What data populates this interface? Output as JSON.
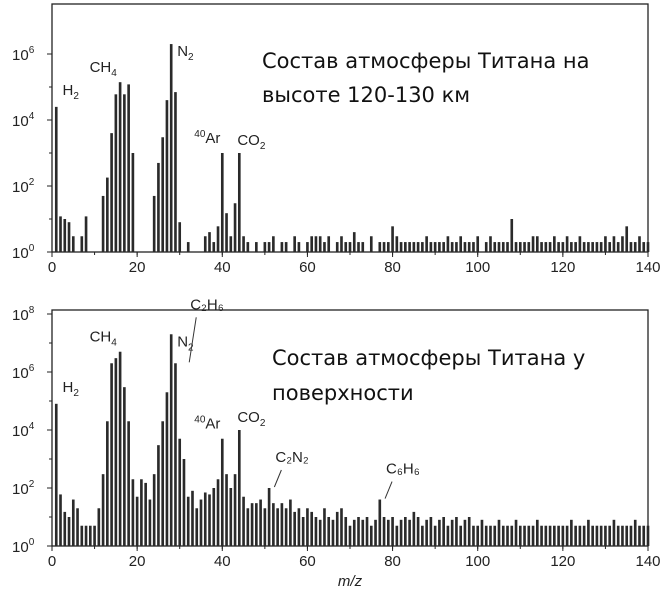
{
  "chart_data": [
    {
      "type": "bar",
      "title": "Состав атмосферы Титана на высоте 120-130 км",
      "title_lines": [
        "Состав атмосферы Титана на",
        "высоте 120-130 км"
      ],
      "xlabel": "",
      "ylabel": "",
      "xlim": [
        0,
        140
      ],
      "ylim": [
        1,
        3000000
      ],
      "yscale": "log",
      "x_ticks": [
        "0",
        "20",
        "40",
        "60",
        "80",
        "100",
        "120",
        "140"
      ],
      "y_ticks": [
        {
          "base": "10",
          "exp": "0"
        },
        {
          "base": "10",
          "exp": "2"
        },
        {
          "base": "10",
          "exp": "4"
        },
        {
          "base": "10",
          "exp": "6"
        }
      ],
      "x": [
        1,
        2,
        3,
        4,
        5,
        7,
        8,
        12,
        13,
        14,
        15,
        16,
        17,
        18,
        19,
        24,
        25,
        26,
        27,
        28,
        29,
        30,
        32,
        36,
        37,
        38,
        39,
        40,
        41,
        42,
        43,
        44,
        45,
        46,
        48,
        50,
        51,
        52,
        54,
        55,
        57,
        58,
        60,
        61,
        62,
        63,
        64,
        65,
        67,
        68,
        69,
        70,
        71,
        72,
        73,
        75,
        77,
        78,
        79,
        80,
        81,
        82,
        83,
        84,
        85,
        86,
        87,
        88,
        89,
        90,
        91,
        92,
        93,
        94,
        95,
        96,
        97,
        98,
        99,
        100,
        102,
        103,
        104,
        105,
        106,
        107,
        108,
        109,
        110,
        111,
        112,
        113,
        114,
        115,
        116,
        117,
        118,
        119,
        120,
        121,
        122,
        123,
        124,
        125,
        126,
        127,
        128,
        129,
        130,
        131,
        132,
        133,
        134,
        135,
        136,
        137,
        138,
        139,
        140
      ],
      "values": [
        25000,
        12,
        10,
        8,
        3,
        3,
        12,
        50,
        180,
        4000,
        60000,
        140000,
        60000,
        120000,
        1000,
        50,
        500,
        3000,
        40000,
        2000000,
        70000,
        8,
        2,
        3,
        4,
        2,
        6,
        1000,
        15,
        3,
        30,
        1000,
        3,
        2,
        2,
        2,
        2,
        3,
        2,
        2,
        3,
        2,
        2,
        3,
        3,
        3,
        2,
        3,
        2,
        3,
        2,
        2,
        4,
        2,
        2,
        3,
        2,
        2,
        2,
        6,
        3,
        2,
        2,
        2,
        2,
        2,
        2,
        3,
        2,
        2,
        2,
        2,
        3,
        2,
        2,
        3,
        2,
        2,
        2,
        3,
        2,
        3,
        2,
        2,
        2,
        2,
        10,
        2,
        2,
        2,
        2,
        3,
        3,
        2,
        2,
        2,
        3,
        2,
        2,
        3,
        2,
        2,
        3,
        2,
        2,
        2,
        2,
        2,
        3,
        2,
        3,
        2,
        3,
        6,
        2,
        2,
        3,
        2,
        2
      ],
      "annotations": [
        {
          "x": 2,
          "y": 25000,
          "label": "H",
          "sub": "2",
          "sup": ""
        },
        {
          "x": 14,
          "y": 140000,
          "label": "CH",
          "sub": "4",
          "sup": ""
        },
        {
          "x": 28,
          "y": 2000000,
          "label": "N",
          "sub": "2",
          "sup": ""
        },
        {
          "x": 40,
          "y": 1000,
          "label": "Ar",
          "sub": "",
          "sup": "40"
        },
        {
          "x": 44,
          "y": 1000,
          "label": "CO",
          "sub": "2",
          "sup": ""
        }
      ]
    },
    {
      "type": "bar",
      "title": "Состав атмосферы Титана у поверхности",
      "title_lines": [
        "Состав атмосферы Титана у",
        "поверхности"
      ],
      "xlabel": "m/z",
      "ylabel": "",
      "xlim": [
        0,
        140
      ],
      "ylim": [
        1,
        100000000
      ],
      "yscale": "log",
      "x_ticks": [
        "0",
        "20",
        "40",
        "60",
        "80",
        "100",
        "120",
        "140"
      ],
      "y_ticks": [
        {
          "base": "10",
          "exp": "0"
        },
        {
          "base": "10",
          "exp": "2"
        },
        {
          "base": "10",
          "exp": "4"
        },
        {
          "base": "10",
          "exp": "6"
        },
        {
          "base": "10",
          "exp": "8"
        }
      ],
      "x": [
        1,
        2,
        3,
        4,
        5,
        6,
        7,
        8,
        9,
        10,
        11,
        12,
        13,
        14,
        15,
        16,
        17,
        18,
        19,
        20,
        21,
        22,
        23,
        24,
        25,
        26,
        27,
        28,
        29,
        30,
        31,
        32,
        33,
        34,
        35,
        36,
        37,
        38,
        39,
        40,
        41,
        42,
        43,
        44,
        45,
        46,
        47,
        48,
        49,
        50,
        51,
        52,
        53,
        54,
        55,
        56,
        57,
        58,
        59,
        60,
        61,
        62,
        63,
        64,
        65,
        66,
        67,
        68,
        69,
        70,
        71,
        72,
        73,
        74,
        75,
        76,
        77,
        78,
        79,
        80,
        81,
        82,
        83,
        84,
        85,
        86,
        87,
        88,
        89,
        90,
        91,
        92,
        93,
        94,
        95,
        96,
        97,
        98,
        99,
        100,
        101,
        102,
        103,
        104,
        105,
        106,
        107,
        108,
        109,
        110,
        111,
        112,
        113,
        114,
        115,
        116,
        117,
        118,
        119,
        120,
        121,
        122,
        123,
        124,
        125,
        126,
        127,
        128,
        129,
        130,
        131,
        132,
        133,
        134,
        135,
        136,
        137,
        138,
        139,
        140
      ],
      "values": [
        80000,
        60,
        15,
        10,
        40,
        20,
        5,
        5,
        5,
        5,
        20,
        300,
        20000,
        2000000,
        3000000,
        5000000,
        300000,
        20000,
        200,
        50,
        200,
        150,
        40,
        300,
        3000,
        20000,
        200000,
        20000000,
        2000000,
        5000,
        1000,
        50,
        80,
        20,
        40,
        70,
        60,
        100,
        200,
        5000,
        300,
        100,
        300,
        10000,
        50,
        20,
        30,
        30,
        40,
        20,
        100,
        30,
        20,
        30,
        20,
        40,
        15,
        20,
        10,
        20,
        15,
        10,
        8,
        20,
        10,
        8,
        15,
        20,
        10,
        5,
        8,
        10,
        8,
        10,
        5,
        8,
        40,
        10,
        8,
        10,
        5,
        8,
        10,
        8,
        15,
        10,
        5,
        8,
        10,
        5,
        8,
        10,
        5,
        8,
        10,
        5,
        8,
        10,
        5,
        5,
        8,
        5,
        5,
        5,
        8,
        5,
        5,
        5,
        8,
        5,
        5,
        5,
        5,
        8,
        5,
        5,
        5,
        5,
        5,
        5,
        5,
        8,
        5,
        5,
        5,
        8,
        5,
        5,
        5,
        5,
        5,
        8,
        5,
        5,
        5,
        5,
        8,
        5,
        5,
        5
      ],
      "annotations": [
        {
          "x": 2,
          "y": 80000,
          "label": "H",
          "sub": "2",
          "sup": ""
        },
        {
          "x": 14,
          "y": 5000000,
          "label": "CH",
          "sub": "4",
          "sup": ""
        },
        {
          "x": 28,
          "y": 20000000,
          "label": "N",
          "sub": "2",
          "sup": ""
        },
        {
          "x": 32,
          "y": 2000000,
          "label": "C₂H₆",
          "sub": "",
          "sup": ""
        },
        {
          "x": 40,
          "y": 5000,
          "label": "Ar",
          "sub": "",
          "sup": "40"
        },
        {
          "x": 44,
          "y": 10000,
          "label": "CO",
          "sub": "2",
          "sup": ""
        },
        {
          "x": 52,
          "y": 100,
          "label": "C₂N₂",
          "sub": "",
          "sup": ""
        },
        {
          "x": 78,
          "y": 40,
          "label": "C₆H₆",
          "sub": "",
          "sup": ""
        }
      ]
    }
  ]
}
